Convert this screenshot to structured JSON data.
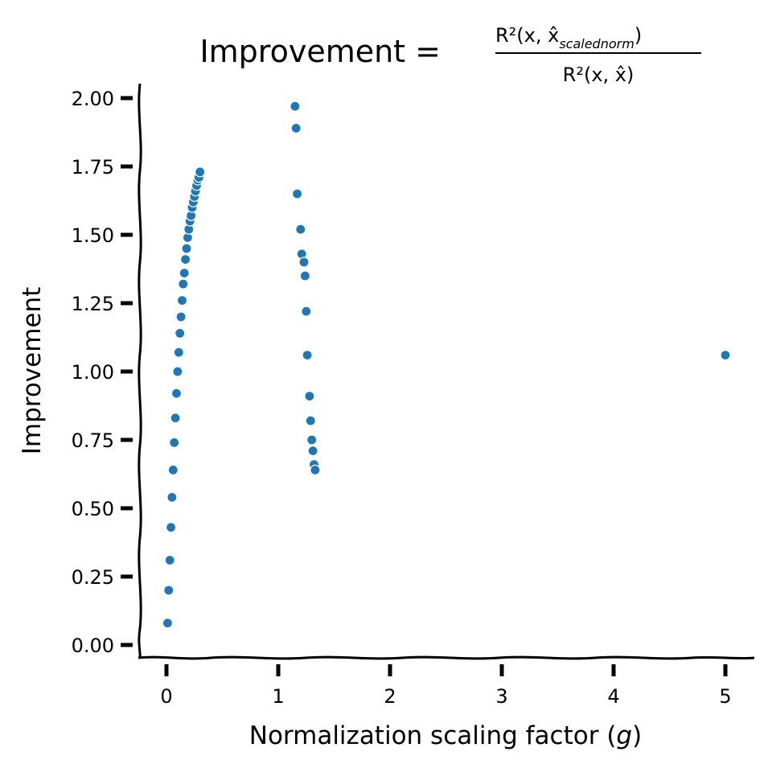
{
  "chart_data": {
    "type": "scatter",
    "title": {
      "prefix": "Improvement = ",
      "numerator_main": "R²(x, x̂",
      "numerator_sub": "scalednorm",
      "numerator_close": ")",
      "denominator": "R²(x, x̂)"
    },
    "xlabel": {
      "before": "Normalization scaling factor (",
      "var": "g",
      "after": ")"
    },
    "ylabel": "Improvement",
    "xlim": [
      -0.25,
      5.25
    ],
    "ylim": [
      -0.05,
      2.05
    ],
    "xticks": [
      0,
      1,
      2,
      3,
      4,
      5
    ],
    "xtick_labels": [
      "0",
      "1",
      "2",
      "3",
      "4",
      "5"
    ],
    "yticks": [
      0,
      0.25,
      0.5,
      0.75,
      1.0,
      1.25,
      1.5,
      1.75,
      2.0
    ],
    "ytick_labels": [
      "0.00",
      "0.25",
      "0.50",
      "0.75",
      "1.00",
      "1.25",
      "1.50",
      "1.75",
      "2.00"
    ],
    "grid": false,
    "marker_color": "#1f77b4",
    "series": [
      {
        "points": [
          [
            0.01,
            0.08
          ],
          [
            0.02,
            0.2
          ],
          [
            0.03,
            0.31
          ],
          [
            0.04,
            0.43
          ],
          [
            0.05,
            0.54
          ],
          [
            0.06,
            0.64
          ],
          [
            0.07,
            0.74
          ],
          [
            0.08,
            0.83
          ],
          [
            0.09,
            0.92
          ],
          [
            0.1,
            1.0
          ],
          [
            0.11,
            1.07
          ],
          [
            0.12,
            1.14
          ],
          [
            0.13,
            1.2
          ],
          [
            0.14,
            1.26
          ],
          [
            0.15,
            1.32
          ],
          [
            0.16,
            1.36
          ],
          [
            0.17,
            1.41
          ],
          [
            0.18,
            1.45
          ],
          [
            0.19,
            1.49
          ],
          [
            0.2,
            1.52
          ],
          [
            0.21,
            1.55
          ],
          [
            0.22,
            1.57
          ],
          [
            0.23,
            1.6
          ],
          [
            0.24,
            1.62
          ],
          [
            0.25,
            1.64
          ],
          [
            0.26,
            1.66
          ],
          [
            0.27,
            1.68
          ],
          [
            0.28,
            1.7
          ],
          [
            0.29,
            1.71
          ],
          [
            0.3,
            1.73
          ],
          [
            1.15,
            1.97
          ],
          [
            1.16,
            1.89
          ],
          [
            1.17,
            1.65
          ],
          [
            1.2,
            1.52
          ],
          [
            1.21,
            1.43
          ],
          [
            1.23,
            1.4
          ],
          [
            1.24,
            1.35
          ],
          [
            1.25,
            1.22
          ],
          [
            1.26,
            1.06
          ],
          [
            1.28,
            0.91
          ],
          [
            1.29,
            0.82
          ],
          [
            1.3,
            0.75
          ],
          [
            1.31,
            0.71
          ],
          [
            1.32,
            0.66
          ],
          [
            1.33,
            0.64
          ],
          [
            5.0,
            1.06
          ]
        ]
      }
    ]
  }
}
